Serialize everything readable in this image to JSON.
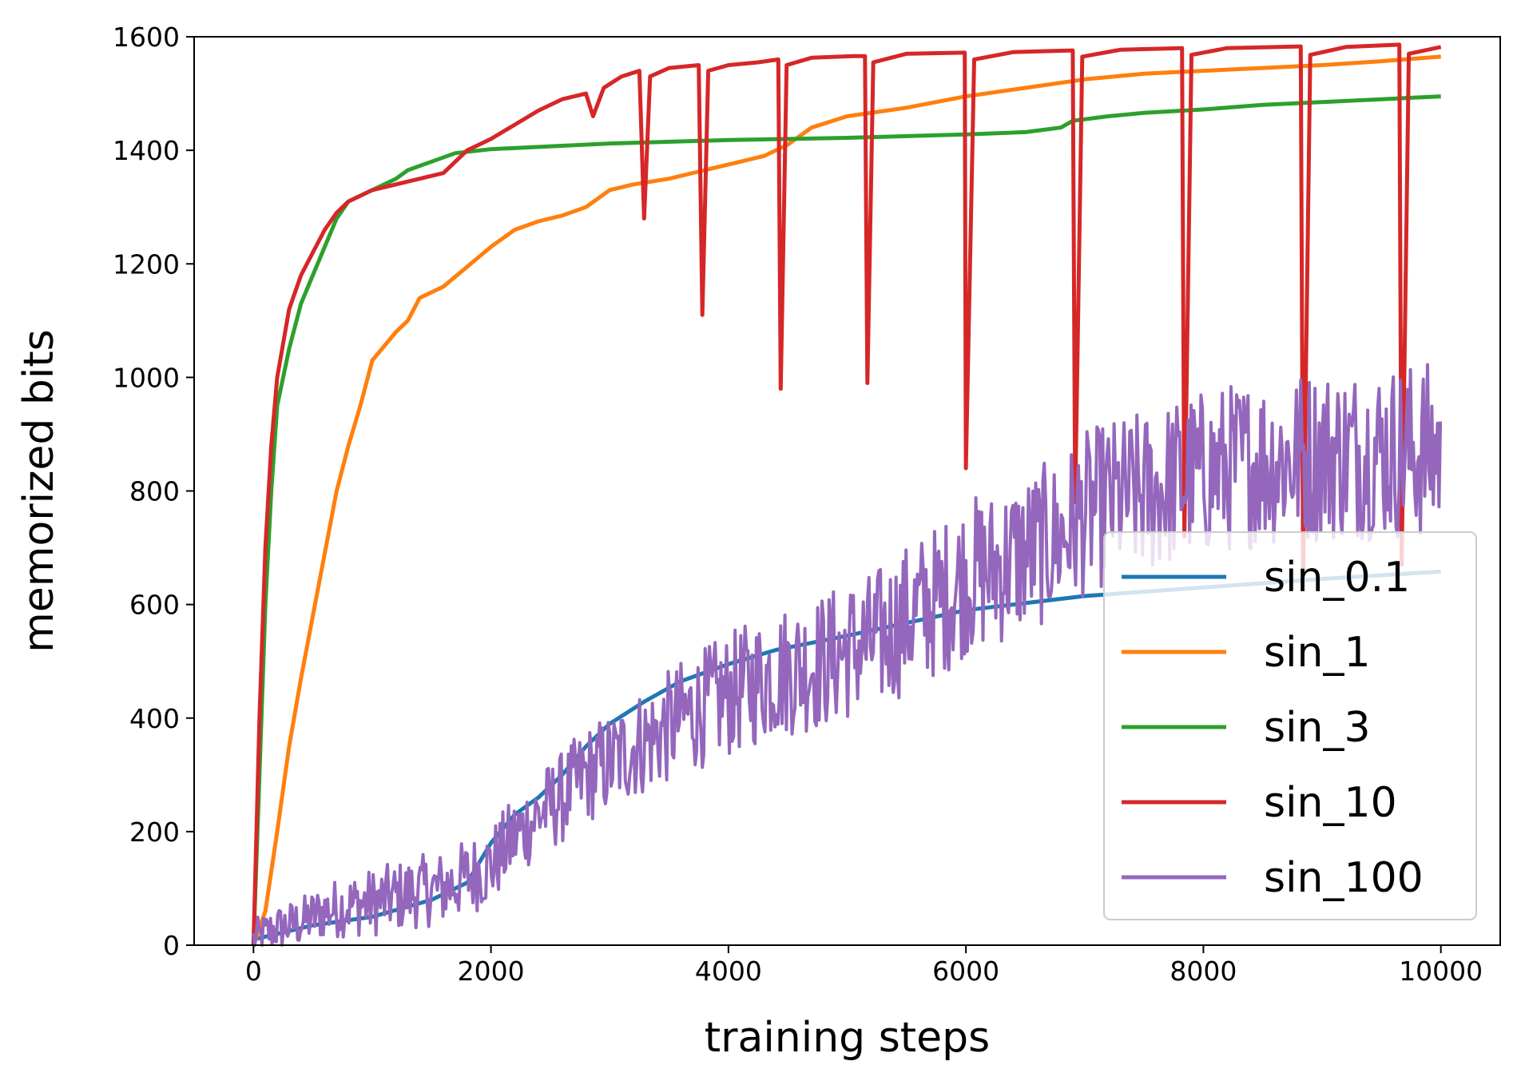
{
  "chart_data": {
    "type": "line",
    "title": "",
    "xlabel": "training steps",
    "ylabel": "memorized bits",
    "xlim": [
      -500,
      10500
    ],
    "ylim": [
      0,
      1600
    ],
    "xticks": [
      0,
      2000,
      4000,
      6000,
      8000,
      10000
    ],
    "yticks": [
      0,
      200,
      400,
      600,
      800,
      1000,
      1200,
      1400,
      1600
    ],
    "grid": false,
    "legend_position": "lower right",
    "series": [
      {
        "name": "sin_0.1",
        "color": "#1f77b4",
        "points": [
          [
            0,
            10
          ],
          [
            200,
            20
          ],
          [
            500,
            35
          ],
          [
            1000,
            50
          ],
          [
            1500,
            80
          ],
          [
            1800,
            110
          ],
          [
            2000,
            180
          ],
          [
            2200,
            230
          ],
          [
            2400,
            260
          ],
          [
            2600,
            300
          ],
          [
            2800,
            350
          ],
          [
            3000,
            390
          ],
          [
            3300,
            430
          ],
          [
            3600,
            465
          ],
          [
            4000,
            495
          ],
          [
            4400,
            520
          ],
          [
            5000,
            545
          ],
          [
            6000,
            590
          ],
          [
            7000,
            615
          ],
          [
            8000,
            630
          ],
          [
            9000,
            645
          ],
          [
            10000,
            658
          ]
        ]
      },
      {
        "name": "sin_1",
        "color": "#ff7f0e",
        "points": [
          [
            0,
            0
          ],
          [
            100,
            60
          ],
          [
            200,
            200
          ],
          [
            300,
            350
          ],
          [
            400,
            470
          ],
          [
            500,
            580
          ],
          [
            600,
            690
          ],
          [
            700,
            800
          ],
          [
            800,
            880
          ],
          [
            900,
            950
          ],
          [
            1000,
            1030
          ],
          [
            1200,
            1080
          ],
          [
            1300,
            1100
          ],
          [
            1400,
            1140
          ],
          [
            1600,
            1160
          ],
          [
            1800,
            1195
          ],
          [
            2000,
            1230
          ],
          [
            2200,
            1260
          ],
          [
            2400,
            1275
          ],
          [
            2600,
            1285
          ],
          [
            2800,
            1300
          ],
          [
            3000,
            1330
          ],
          [
            3200,
            1340
          ],
          [
            3500,
            1350
          ],
          [
            3800,
            1365
          ],
          [
            4000,
            1375
          ],
          [
            4300,
            1390
          ],
          [
            4500,
            1410
          ],
          [
            4700,
            1440
          ],
          [
            5000,
            1460
          ],
          [
            5500,
            1475
          ],
          [
            6000,
            1495
          ],
          [
            6500,
            1510
          ],
          [
            7000,
            1525
          ],
          [
            7500,
            1535
          ],
          [
            8000,
            1540
          ],
          [
            8500,
            1545
          ],
          [
            9000,
            1550
          ],
          [
            9500,
            1557
          ],
          [
            10000,
            1565
          ]
        ]
      },
      {
        "name": "sin_3",
        "color": "#2ca02c",
        "points": [
          [
            0,
            0
          ],
          [
            50,
            300
          ],
          [
            100,
            600
          ],
          [
            150,
            800
          ],
          [
            200,
            950
          ],
          [
            300,
            1050
          ],
          [
            400,
            1130
          ],
          [
            500,
            1180
          ],
          [
            600,
            1230
          ],
          [
            700,
            1280
          ],
          [
            800,
            1310
          ],
          [
            1000,
            1330
          ],
          [
            1200,
            1350
          ],
          [
            1300,
            1365
          ],
          [
            1500,
            1380
          ],
          [
            1700,
            1395
          ],
          [
            2000,
            1402
          ],
          [
            3000,
            1412
          ],
          [
            4000,
            1418
          ],
          [
            5000,
            1422
          ],
          [
            6000,
            1428
          ],
          [
            6500,
            1432
          ],
          [
            6800,
            1440
          ],
          [
            6900,
            1452
          ],
          [
            7200,
            1460
          ],
          [
            7500,
            1466
          ],
          [
            8000,
            1472
          ],
          [
            8500,
            1480
          ],
          [
            9000,
            1485
          ],
          [
            9500,
            1490
          ],
          [
            10000,
            1495
          ]
        ]
      },
      {
        "name": "sin_10",
        "color": "#d62728",
        "points": [
          [
            0,
            0
          ],
          [
            50,
            400
          ],
          [
            100,
            700
          ],
          [
            150,
            880
          ],
          [
            200,
            1000
          ],
          [
            300,
            1120
          ],
          [
            400,
            1180
          ],
          [
            500,
            1220
          ],
          [
            600,
            1260
          ],
          [
            700,
            1290
          ],
          [
            800,
            1310
          ],
          [
            1000,
            1330
          ],
          [
            1200,
            1340
          ],
          [
            1400,
            1350
          ],
          [
            1600,
            1360
          ],
          [
            1700,
            1380
          ],
          [
            1800,
            1400
          ],
          [
            2000,
            1420
          ],
          [
            2200,
            1445
          ],
          [
            2400,
            1470
          ],
          [
            2600,
            1490
          ],
          [
            2800,
            1500
          ],
          [
            2860,
            1460
          ],
          [
            2950,
            1510
          ],
          [
            3100,
            1530
          ],
          [
            3250,
            1540
          ],
          [
            3290,
            1280
          ],
          [
            3340,
            1530
          ],
          [
            3500,
            1545
          ],
          [
            3750,
            1550
          ],
          [
            3780,
            1110
          ],
          [
            3830,
            1540
          ],
          [
            4000,
            1550
          ],
          [
            4250,
            1555
          ],
          [
            4420,
            1560
          ],
          [
            4440,
            980
          ],
          [
            4490,
            1550
          ],
          [
            4700,
            1563
          ],
          [
            5050,
            1566
          ],
          [
            5150,
            1566
          ],
          [
            5170,
            990
          ],
          [
            5220,
            1555
          ],
          [
            5500,
            1570
          ],
          [
            5990,
            1572
          ],
          [
            6000,
            840
          ],
          [
            6070,
            1560
          ],
          [
            6400,
            1573
          ],
          [
            6900,
            1576
          ],
          [
            6920,
            780
          ],
          [
            6980,
            1565
          ],
          [
            7300,
            1577
          ],
          [
            7820,
            1580
          ],
          [
            7840,
            720
          ],
          [
            7900,
            1568
          ],
          [
            8200,
            1580
          ],
          [
            8820,
            1583
          ],
          [
            8840,
            650
          ],
          [
            8900,
            1568
          ],
          [
            9200,
            1582
          ],
          [
            9650,
            1586
          ],
          [
            9670,
            670
          ],
          [
            9730,
            1570
          ],
          [
            10000,
            1582
          ]
        ]
      },
      {
        "name": "sin_100",
        "color": "#9467bd",
        "points": [
          [
            0,
            10
          ],
          [
            200,
            30
          ],
          [
            400,
            40
          ],
          [
            600,
            60
          ],
          [
            800,
            70
          ],
          [
            1000,
            75
          ],
          [
            1200,
            85
          ],
          [
            1400,
            95
          ],
          [
            1600,
            100
          ],
          [
            1800,
            120
          ],
          [
            2000,
            140
          ],
          [
            2200,
            190
          ],
          [
            2400,
            230
          ],
          [
            2600,
            260
          ],
          [
            2800,
            300
          ],
          [
            3000,
            320
          ],
          [
            3200,
            350
          ],
          [
            3400,
            370
          ],
          [
            3600,
            400
          ],
          [
            3800,
            420
          ],
          [
            4000,
            440
          ],
          [
            4200,
            460
          ],
          [
            4400,
            480
          ],
          [
            4600,
            490
          ],
          [
            4800,
            500
          ],
          [
            5000,
            520
          ],
          [
            5200,
            530
          ],
          [
            5400,
            560
          ],
          [
            5600,
            590
          ],
          [
            5800,
            610
          ],
          [
            6000,
            650
          ],
          [
            6200,
            660
          ],
          [
            6400,
            680
          ],
          [
            6600,
            700
          ],
          [
            6800,
            720
          ],
          [
            7000,
            760
          ],
          [
            7200,
            780
          ],
          [
            7400,
            790
          ],
          [
            7600,
            800
          ],
          [
            7800,
            820
          ],
          [
            8000,
            830
          ],
          [
            8200,
            840
          ],
          [
            8400,
            850
          ],
          [
            8600,
            855
          ],
          [
            8800,
            860
          ],
          [
            9000,
            865
          ],
          [
            9200,
            865
          ],
          [
            9400,
            870
          ],
          [
            9600,
            870
          ],
          [
            9800,
            870
          ],
          [
            10000,
            870
          ]
        ],
        "noise": [
          [
            0,
            35
          ],
          [
            1000,
            60
          ],
          [
            2000,
            70
          ],
          [
            4000,
            110
          ],
          [
            6000,
            140
          ],
          [
            8000,
            150
          ],
          [
            10000,
            160
          ]
        ]
      }
    ]
  }
}
